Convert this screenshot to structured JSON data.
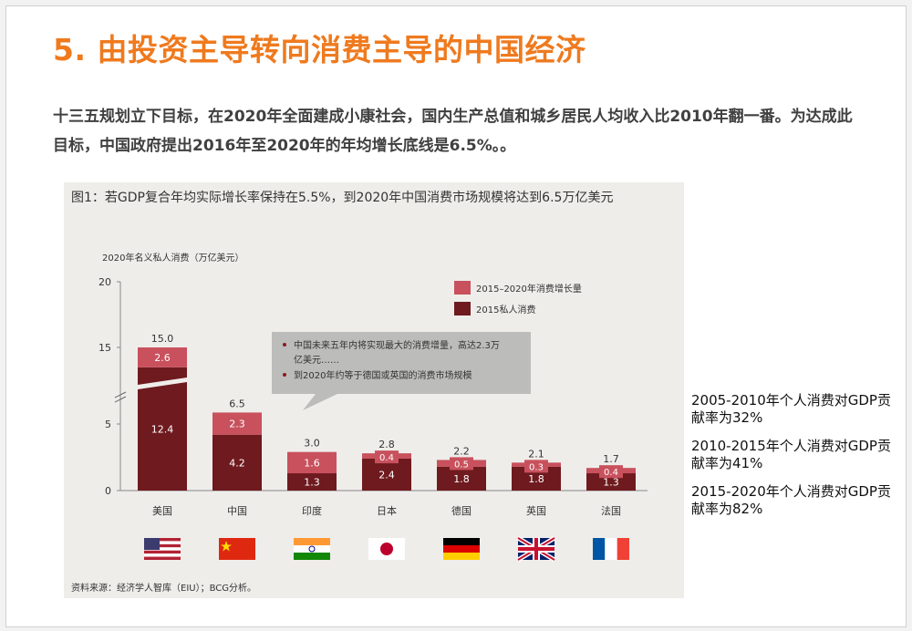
{
  "title": "5. 由投资主导转向消费主导的中国经济",
  "paragraph": "十三五规划立下目标，在2020年全面建成小康社会，国内生产总值和城乡居民人均收入比2010年翻一番。为达成此目标，中国政府提出2016年至2020年的年均增长底线是6.5%。。",
  "figure": {
    "title": "图1：若GDP复合年均实际增长率保持在5.5%，到2020年中国消费市场规模将达到6.5万亿美元",
    "source": "资料来源：经济学人智库（EIU）；BCG分析。",
    "callout": [
      "中国未来五年内将实现最大的消费增量，高达2.3万亿美元……",
      "到2020年约等于德国或英国的消费市场规模"
    ]
  },
  "chart_data": {
    "type": "bar",
    "stacked": true,
    "ylabel": "2020年名义私人消费（万亿美元）",
    "ylim": [
      0,
      20
    ],
    "yticks": [
      0,
      5,
      15,
      20
    ],
    "axis_break": true,
    "categories": [
      "美国",
      "中国",
      "印度",
      "日本",
      "德国",
      "英国",
      "法国"
    ],
    "totals": [
      15.0,
      6.5,
      3.0,
      2.8,
      2.2,
      2.1,
      1.7
    ],
    "series": [
      {
        "name": "2015私人消费",
        "values": [
          12.4,
          4.2,
          1.3,
          2.4,
          1.8,
          1.8,
          1.3
        ],
        "color": "#6e1a1f"
      },
      {
        "name": "2015–2020年消费增长量",
        "values": [
          2.6,
          2.3,
          1.6,
          0.4,
          0.5,
          0.3,
          0.4
        ],
        "color": "#c8515d"
      }
    ],
    "legend_position": "top-right"
  },
  "flags": [
    "us-flag-icon",
    "cn-flag-icon",
    "in-flag-icon",
    "jp-flag-icon",
    "de-flag-icon",
    "gb-flag-icon",
    "fr-flag-icon"
  ],
  "side_notes": [
    "2005-2010年个人消费对GDP贡献率为32%",
    "2010-2015年个人消费对GDP贡献率为41%",
    "2015-2020年个人消费对GDP贡献率为82%"
  ],
  "colors": {
    "title": "#ef7a1e",
    "bar_base": "#6e1a1f",
    "bar_growth": "#c8515d",
    "figure_bg": "#efedea"
  }
}
